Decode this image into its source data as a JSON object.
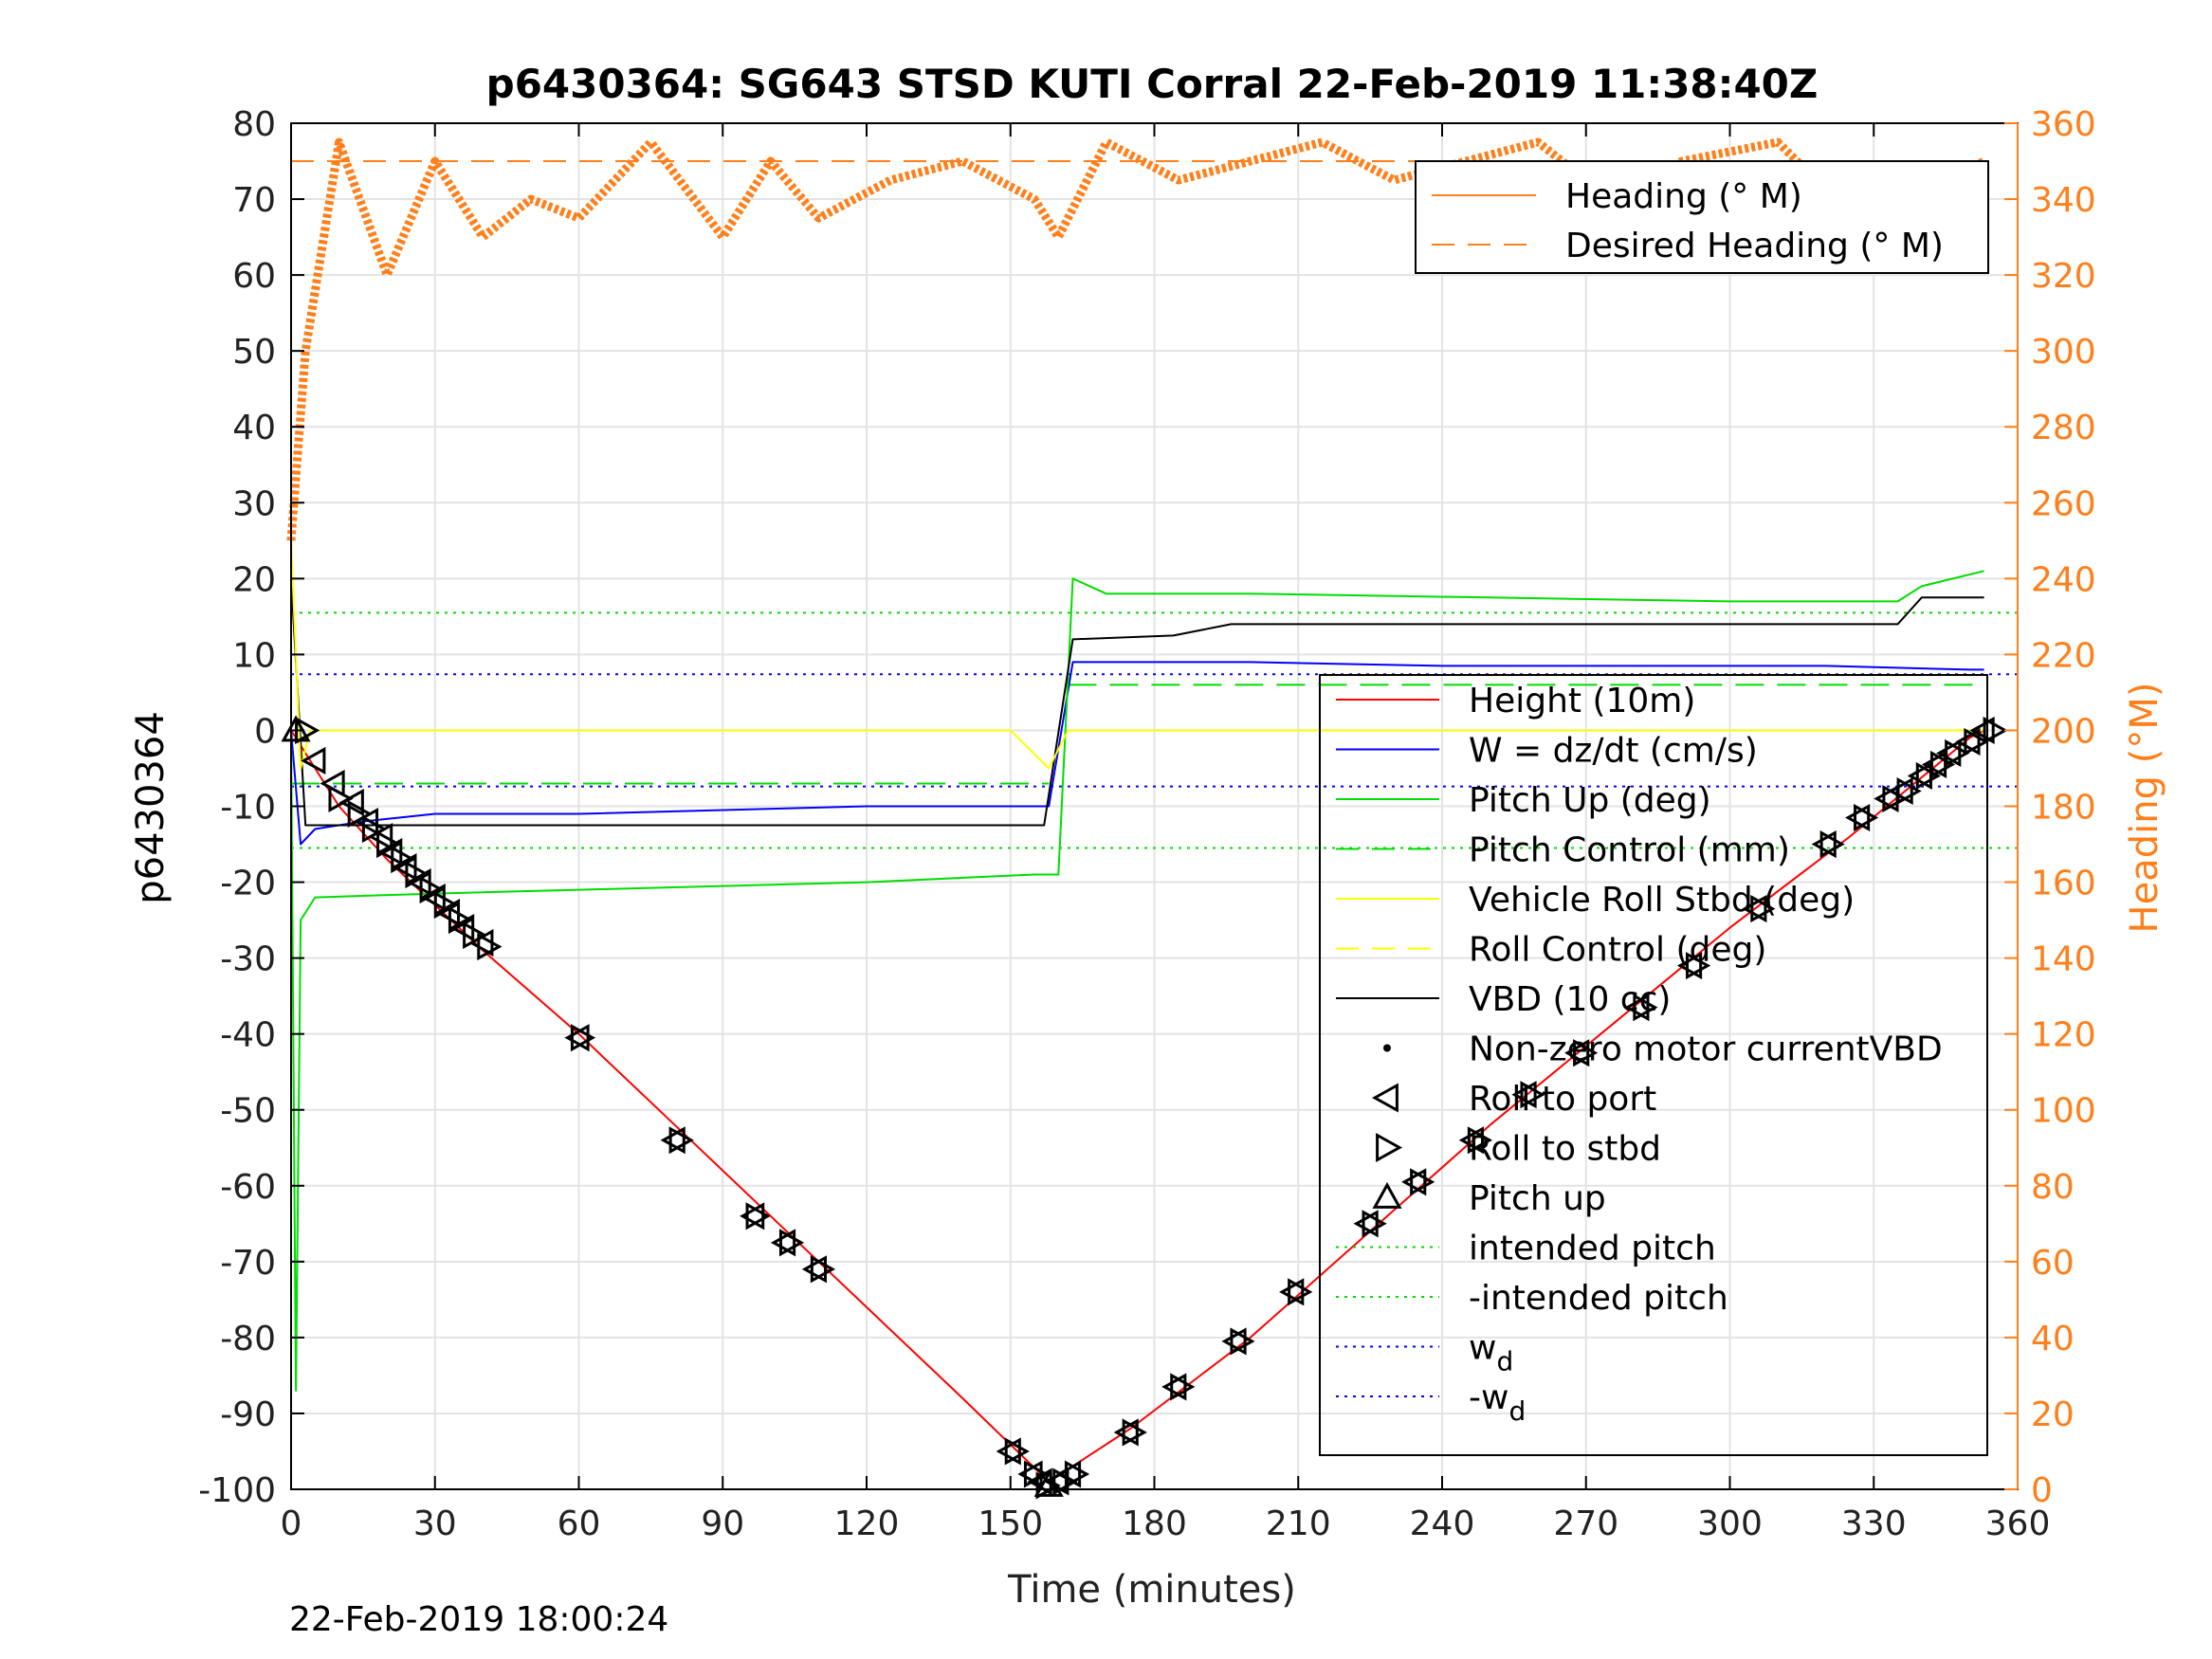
{
  "chart_data": {
    "type": "line",
    "title": "p6430364: SG643 STSD KUTI Corral 22-Feb-2019 11:38:40Z",
    "xlabel": "Time (minutes)",
    "ylabel": "p6430364",
    "y2label": "Heading (°M)",
    "xlim": [
      0,
      360
    ],
    "ylim": [
      -100,
      80
    ],
    "y2lim": [
      0,
      360
    ],
    "x_ticks": [
      "0",
      "30",
      "60",
      "90",
      "120",
      "150",
      "180",
      "210",
      "240",
      "270",
      "300",
      "330",
      "360"
    ],
    "y_ticks": [
      "80",
      "70",
      "60",
      "50",
      "40",
      "30",
      "20",
      "10",
      "0",
      "-10",
      "-20",
      "-30",
      "-40",
      "-50",
      "-60",
      "-70",
      "-80",
      "-90",
      "-100"
    ],
    "y2_ticks": [
      "360",
      "340",
      "320",
      "300",
      "280",
      "260",
      "240",
      "220",
      "200",
      "180",
      "160",
      "140",
      "120",
      "100",
      "80",
      "60",
      "40",
      "20",
      "0"
    ],
    "grid": true,
    "footer": "22-Feb-2019 18:00:24",
    "colors": {
      "height": "#ff0000",
      "w": "#0000ff",
      "pitch": "#00dd00",
      "roll": "#ffff00",
      "vbd": "#000000",
      "heading": "#ff7f1a"
    },
    "legend_heading": {
      "placement": "top-right",
      "entries": [
        "Heading (° M)",
        "Desired Heading (° M)"
      ]
    },
    "legend_main": {
      "placement": "right",
      "entries": [
        "Height (10m)",
        "W = dz/dt (cm/s)",
        "Pitch Up (deg)",
        "Pitch Control (mm)",
        "Vehicle Roll Stbd (deg)",
        "Roll Control (deg)",
        "VBD (10 cc)",
        "Non-zero motor currentVBD",
        "Roll to port",
        "Roll to stbd",
        "Pitch up",
        "intended pitch",
        "-intended pitch",
        "w_d",
        "-w_d"
      ]
    },
    "series": [
      {
        "name": "Height (10m)",
        "x": [
          0,
          10,
          20,
          40,
          60,
          80,
          100,
          120,
          140,
          158,
          175,
          200,
          225,
          250,
          275,
          300,
          325,
          350,
          353
        ],
        "values": [
          0,
          -10,
          -17,
          -29,
          -40,
          -52,
          -64,
          -76,
          -88,
          -99,
          -92,
          -80,
          -66,
          -52,
          -39,
          -26,
          -14,
          -1,
          0
        ]
      },
      {
        "name": "W = dz/dt (cm/s)",
        "x": [
          0,
          2,
          5,
          15,
          30,
          60,
          90,
          120,
          150,
          158,
          163,
          180,
          200,
          240,
          280,
          320,
          350,
          353
        ],
        "values": [
          0,
          -15,
          -13,
          -12,
          -11,
          -11,
          -10.5,
          -10,
          -10,
          -10,
          9,
          9,
          9,
          8.5,
          8.5,
          8.5,
          8,
          8
        ]
      },
      {
        "name": "Pitch Up (deg)",
        "x": [
          0,
          1,
          2,
          5,
          30,
          60,
          90,
          120,
          155,
          160,
          163,
          170,
          200,
          250,
          300,
          335,
          340,
          353
        ],
        "values": [
          0,
          -87,
          -25,
          -22,
          -21.5,
          -21,
          -20.5,
          -20,
          -19,
          -19,
          20,
          18,
          18,
          17.5,
          17,
          17,
          19,
          21
        ]
      },
      {
        "name": "VBD (10 cc)",
        "x": [
          0,
          3,
          157,
          163,
          184,
          196,
          335,
          340,
          353
        ],
        "values": [
          20,
          -12.5,
          -12.5,
          12,
          12.5,
          14,
          14,
          17.5,
          17.5
        ]
      },
      {
        "name": "Vehicle Roll Stbd (deg)",
        "x": [
          0,
          2,
          4,
          50,
          100,
          150,
          158,
          162,
          200,
          250,
          300,
          353
        ],
        "values": [
          25,
          -5,
          0,
          0,
          0,
          0,
          -5,
          0,
          0,
          0,
          0,
          0
        ]
      },
      {
        "name": "Heading (° M)",
        "axis": "right",
        "x": [
          0,
          3,
          10,
          20,
          30,
          40,
          50,
          60,
          75,
          90,
          100,
          110,
          125,
          140,
          155,
          160,
          170,
          185,
          200,
          215,
          230,
          245,
          260,
          275,
          290,
          310,
          330,
          345,
          353
        ],
        "values": [
          250,
          300,
          355,
          320,
          350,
          330,
          340,
          335,
          355,
          330,
          350,
          335,
          345,
          350,
          340,
          330,
          355,
          345,
          350,
          355,
          345,
          350,
          355,
          340,
          350,
          355,
          330,
          345,
          350
        ]
      },
      {
        "name": "Desired Heading (° M)",
        "axis": "right",
        "x": [
          0,
          353
        ],
        "values": [
          350,
          350
        ]
      }
    ],
    "reference_lines": {
      "intended pitch": 15.5,
      "-intended pitch": -15.5,
      "w_d": 7.4,
      "-w_d": -7.4,
      "pitch_control": [
        -7,
        6
      ]
    },
    "markers": {
      "Roll to port": [
        [
          5,
          -4
        ],
        [
          9,
          -7
        ],
        [
          13,
          -9.5
        ],
        [
          16,
          -12
        ],
        [
          19,
          -14
        ],
        [
          21,
          -16
        ],
        [
          24,
          -18
        ],
        [
          27,
          -20
        ],
        [
          30,
          -22
        ],
        [
          33,
          -24
        ],
        [
          36,
          -26
        ],
        [
          40,
          -28
        ],
        [
          60,
          -40.5
        ],
        [
          80,
          -54
        ],
        [
          96.5,
          -64
        ],
        [
          103,
          -67.5
        ],
        [
          109.5,
          -71
        ],
        [
          150,
          -95
        ],
        [
          154.5,
          -98
        ],
        [
          156.5,
          -99
        ],
        [
          160,
          -99
        ],
        [
          162.5,
          -98
        ],
        [
          174.5,
          -92.5
        ],
        [
          184.5,
          -86.5
        ],
        [
          197,
          -80.5
        ],
        [
          209,
          -74
        ],
        [
          224.5,
          -65
        ],
        [
          234.5,
          -59.5
        ],
        [
          246.5,
          -54
        ],
        [
          257.5,
          -48
        ],
        [
          268.5,
          -42.5
        ],
        [
          281,
          -36.5
        ],
        [
          292,
          -31
        ],
        [
          305.5,
          -23.5
        ],
        [
          320,
          -15
        ],
        [
          327,
          -11.5
        ],
        [
          333,
          -9
        ],
        [
          336,
          -8
        ],
        [
          340,
          -6
        ],
        [
          343,
          -4.5
        ],
        [
          346,
          -3
        ],
        [
          350,
          -1.5
        ],
        [
          353,
          0
        ]
      ],
      "Roll to stbd": [
        [
          3,
          0
        ],
        [
          10,
          -9
        ],
        [
          14,
          -11
        ],
        [
          17,
          -13
        ],
        [
          20,
          -15
        ],
        [
          23,
          -17
        ],
        [
          26,
          -19
        ],
        [
          29,
          -21
        ],
        [
          32,
          -23
        ],
        [
          35,
          -25
        ],
        [
          38,
          -27
        ],
        [
          41,
          -28.5
        ],
        [
          60.5,
          -40.5
        ],
        [
          81,
          -54
        ],
        [
          97,
          -64
        ],
        [
          104,
          -67.5
        ],
        [
          110.5,
          -71
        ],
        [
          151,
          -95
        ],
        [
          155,
          -98
        ],
        [
          157.5,
          -99.5
        ],
        [
          161,
          -99
        ],
        [
          163.5,
          -98
        ],
        [
          175.5,
          -92.5
        ],
        [
          185.5,
          -86.5
        ],
        [
          198,
          -80.5
        ],
        [
          210,
          -74
        ],
        [
          225.5,
          -65
        ],
        [
          235.5,
          -59.5
        ],
        [
          247.5,
          -54
        ],
        [
          258.5,
          -48
        ],
        [
          269.5,
          -42.5
        ],
        [
          282,
          -36.5
        ],
        [
          293,
          -31
        ],
        [
          306.5,
          -23.5
        ],
        [
          321,
          -15
        ],
        [
          328,
          -11.5
        ],
        [
          334,
          -9
        ],
        [
          337,
          -8
        ],
        [
          341,
          -6
        ],
        [
          344,
          -4.5
        ],
        [
          347,
          -3
        ],
        [
          351,
          -1.5
        ],
        [
          355,
          0
        ]
      ],
      "Pitch up": [
        [
          1,
          0
        ],
        [
          158,
          -99.5
        ]
      ]
    }
  }
}
